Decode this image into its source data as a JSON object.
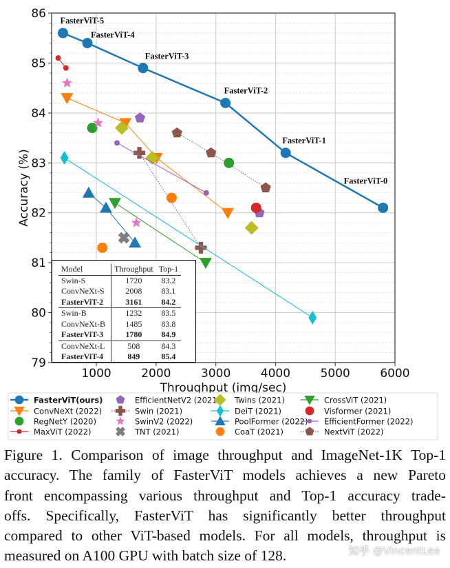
{
  "chart_data": {
    "type": "scatter",
    "xlabel": "Throughput (img/sec)",
    "ylabel": "Accuracy (%)",
    "xlim": [
      250,
      6000
    ],
    "ylim": [
      79,
      86
    ],
    "xticks": [
      1000,
      2000,
      3000,
      4000,
      5000,
      6000
    ],
    "yticks": [
      79,
      80,
      81,
      82,
      83,
      84,
      85,
      86
    ],
    "grid": true,
    "legend_placement": "bottom",
    "series": [
      {
        "name": "FasterViT(ours)",
        "color": "#1f77b4",
        "marker": "circle",
        "line": "solid-thick",
        "labels": [
          "FasterViT-5",
          "FasterViT-4",
          "FasterViT-3",
          "FasterViT-2",
          "FasterViT-1",
          "FasterViT-0"
        ],
        "x": [
          440,
          849,
          1780,
          3161,
          4170,
          5800
        ],
        "y": [
          85.6,
          85.4,
          84.9,
          84.2,
          83.2,
          82.1
        ]
      },
      {
        "name": "ConvNeXt (2022)",
        "color": "#ff7f0e",
        "marker": "triangle-down",
        "line": "solid",
        "x": [
          508,
          1485,
          2008,
          3200
        ],
        "y": [
          84.3,
          83.8,
          83.1,
          82.0
        ]
      },
      {
        "name": "RegNetY (2020)",
        "color": "#2ca02c",
        "marker": "circle",
        "line": "none",
        "x": [
          930,
          3220
        ],
        "y": [
          83.7,
          83.0
        ]
      },
      {
        "name": "MaxViT (2022)",
        "color": "#d62728",
        "marker": "small-circle",
        "line": "solid",
        "x": [
          360,
          490
        ],
        "y": [
          85.1,
          84.9
        ]
      },
      {
        "name": "EfficientNetV2 (2021)",
        "color": "#9467bd",
        "marker": "pentagon",
        "line": "none",
        "x": [
          1730,
          3730
        ],
        "y": [
          83.9,
          82.0
        ]
      },
      {
        "name": "Swin (2021)",
        "color": "#8c564b",
        "marker": "plus",
        "line": "dotted",
        "x": [
          1720,
          2750
        ],
        "y": [
          83.2,
          81.3
        ]
      },
      {
        "name": "SwinV2 (2022)",
        "color": "#e377c2",
        "marker": "star",
        "line": "none",
        "x": [
          510,
          1030,
          1670
        ],
        "y": [
          84.6,
          83.8,
          81.8
        ]
      },
      {
        "name": "TNT (2021)",
        "color": "#7f7f7f",
        "marker": "x",
        "line": "none",
        "x": [
          1460
        ],
        "y": [
          81.5
        ]
      },
      {
        "name": "Twins (2021)",
        "color": "#bcbd22",
        "marker": "diamond",
        "line": "none",
        "x": [
          1425,
          1935,
          3600
        ],
        "y": [
          83.7,
          83.1,
          81.7
        ]
      },
      {
        "name": "DeiT (2021)",
        "color": "#17becf",
        "marker": "thin-diamond",
        "line": "solid",
        "x": [
          465,
          4620
        ],
        "y": [
          83.1,
          79.9
        ]
      },
      {
        "name": "PoolFormer (2022)",
        "color": "#1f77b4",
        "marker": "triangle-up",
        "line": "solid",
        "x": [
          870,
          1160,
          1645
        ],
        "y": [
          82.4,
          82.1,
          81.4
        ]
      },
      {
        "name": "CoaT (2021)",
        "color": "#ff7f0e",
        "marker": "circle",
        "line": "none",
        "x": [
          1100,
          2260
        ],
        "y": [
          81.3,
          82.3
        ]
      },
      {
        "name": "CrossViT (2021)",
        "color": "#2ca02c",
        "marker": "triangle-down",
        "line": "solid",
        "x": [
          1310,
          2830
        ],
        "y": [
          82.2,
          81.0
        ]
      },
      {
        "name": "Visformer (2021)",
        "color": "#d62728",
        "marker": "circle",
        "line": "none",
        "x": [
          3675
        ],
        "y": [
          82.1
        ]
      },
      {
        "name": "EfficientFormer (2022)",
        "color": "#9467bd",
        "marker": "small-circle",
        "line": "solid",
        "x": [
          1345,
          2840
        ],
        "y": [
          83.4,
          82.4
        ]
      },
      {
        "name": "NextViT (2022)",
        "color": "#8c564b",
        "marker": "pentagon",
        "line": "dotted",
        "x": [
          2350,
          2920,
          3835
        ],
        "y": [
          83.6,
          83.2,
          82.5
        ]
      }
    ],
    "inset_table": {
      "headers": [
        "Model",
        "Throughput",
        "Top-1"
      ],
      "rows": [
        {
          "model": "Swin-S",
          "throughput": "1720",
          "top1": "83.2",
          "bold": false
        },
        {
          "model": "ConvNeXt-S",
          "throughput": "2008",
          "top1": "83.1",
          "bold": false
        },
        {
          "model": "FasterViT-2",
          "throughput": "3161",
          "top1": "84.2",
          "bold": true
        },
        {
          "model": "Swin-B",
          "throughput": "1232",
          "top1": "83.5",
          "bold": false
        },
        {
          "model": "ConvNeXt-B",
          "throughput": "1485",
          "top1": "83.8",
          "bold": false
        },
        {
          "model": "FasterViT-3",
          "throughput": "1780",
          "top1": "84.9",
          "bold": true
        },
        {
          "model": "ConvNeXt-L",
          "throughput": "508",
          "top1": "84.3",
          "bold": false
        },
        {
          "model": "FasterViT-4",
          "throughput": "849",
          "top1": "85.4",
          "bold": true
        }
      ]
    }
  },
  "caption": {
    "lines": [
      "Figure 1. Comparison of image throughput and ImageNet-1K Top-1",
      "accuracy. The family of FasterViT models achieves a new Pareto",
      "front encompassing various throughput and Top-1 accuracy trade-",
      "offs. Specifically, FasterViT has significantly better throughput",
      "compared to other ViT-based models. For all models, throughput is",
      "measured on A100 GPU with batch size of 128."
    ]
  },
  "watermark": "知乎 @VincentLee"
}
